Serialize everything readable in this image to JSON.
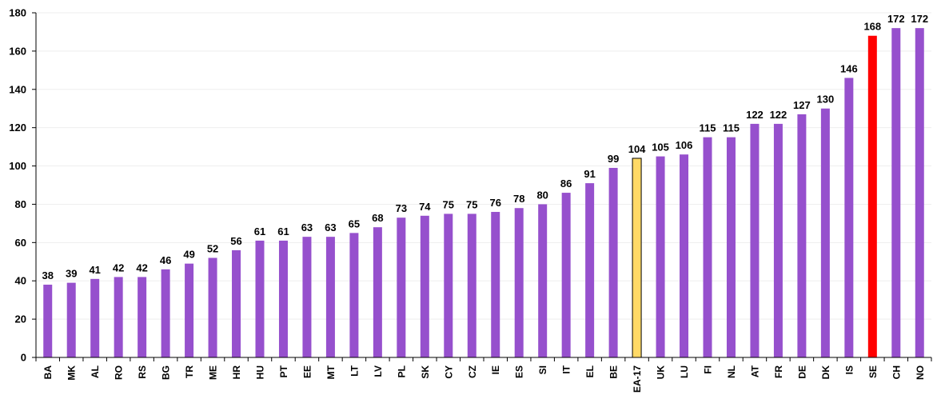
{
  "chart_data": {
    "type": "bar",
    "title": "",
    "xlabel": "",
    "ylabel": "",
    "ylim": [
      0,
      180
    ],
    "yticks": [
      0,
      20,
      40,
      60,
      80,
      100,
      120,
      140,
      160,
      180
    ],
    "grid": true,
    "categories": [
      "BA",
      "MK",
      "AL",
      "RO",
      "RS",
      "BG",
      "TR",
      "ME",
      "HR",
      "HU",
      "PT",
      "EE",
      "MT",
      "LT",
      "LV",
      "PL",
      "SK",
      "CY",
      "CZ",
      "IE",
      "ES",
      "SI",
      "IT",
      "EL",
      "BE",
      "EA-17",
      "UK",
      "LU",
      "FI",
      "NL",
      "AT",
      "FR",
      "DE",
      "DK",
      "IS",
      "SE",
      "CH",
      "NO"
    ],
    "values": [
      38,
      39,
      41,
      42,
      42,
      46,
      49,
      52,
      56,
      61,
      61,
      63,
      63,
      65,
      68,
      73,
      74,
      75,
      75,
      76,
      78,
      80,
      86,
      91,
      99,
      104,
      105,
      106,
      115,
      115,
      122,
      122,
      127,
      130,
      146,
      168,
      172,
      172
    ],
    "colors": {
      "default": "#9650cd",
      "highlight_aggregate": "#ffd966",
      "highlight_country": "#ff0000"
    },
    "highlights": {
      "EA-17": "highlight_aggregate",
      "SE": "highlight_country"
    }
  }
}
